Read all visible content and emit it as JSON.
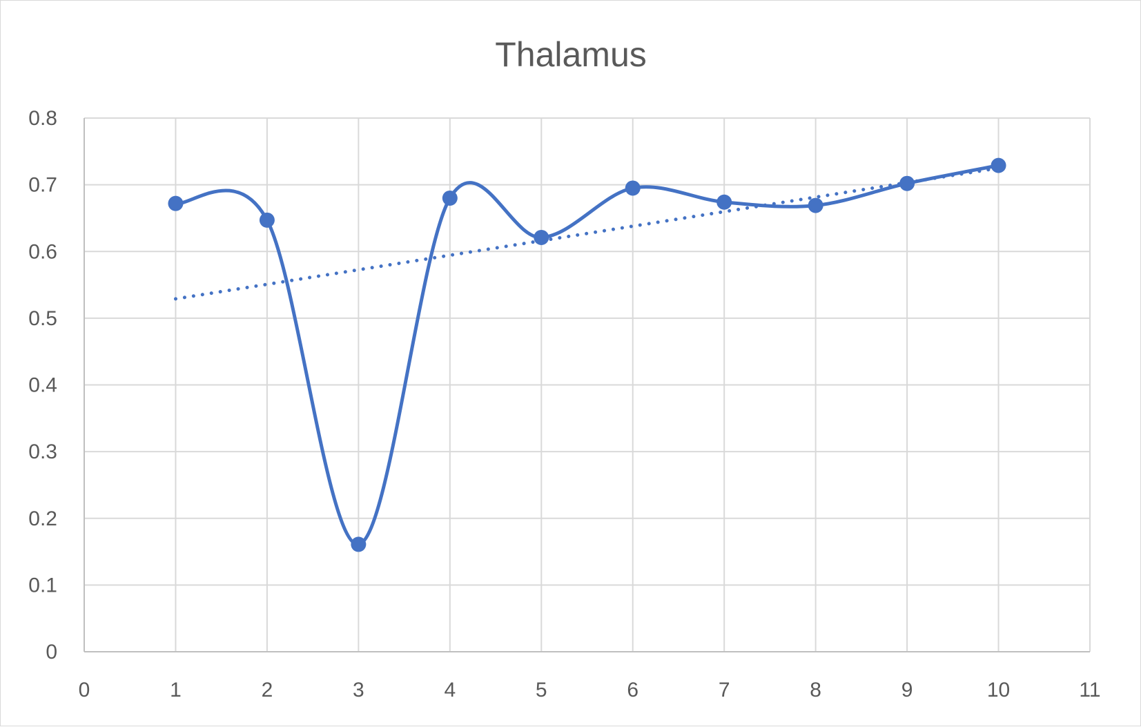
{
  "chart_data": {
    "type": "scatter",
    "title": "Thalamus",
    "xlabel": "",
    "ylabel": "",
    "xlim": [
      0,
      11
    ],
    "ylim": [
      0,
      0.8
    ],
    "x_ticks": [
      "0",
      "1",
      "2",
      "3",
      "4",
      "5",
      "6",
      "7",
      "8",
      "9",
      "10",
      "11"
    ],
    "y_ticks": [
      "0",
      "0.1",
      "0.2",
      "0.3",
      "0.4",
      "0.5",
      "0.6",
      "0.7",
      "0.8"
    ],
    "grid": true,
    "legend": "none",
    "series": [
      {
        "style": "smoothed line with markers",
        "color": "#4472c4",
        "x": [
          1,
          2,
          3,
          4,
          5,
          6,
          7,
          8,
          9,
          10
        ],
        "y": [
          0.672,
          0.647,
          0.161,
          0.68,
          0.621,
          0.695,
          0.674,
          0.669,
          0.702,
          0.729
        ]
      }
    ],
    "trendline": {
      "kind": "linear",
      "style": "dotted",
      "color": "#4472c4",
      "x": [
        1,
        10
      ],
      "y": [
        0.529,
        0.725
      ]
    }
  }
}
